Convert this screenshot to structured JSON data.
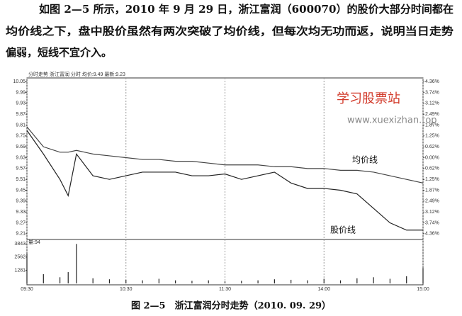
{
  "paragraph": [
    "如图 2—5 所示，2010 年 9 月 29 日，浙江富润（600070）的股价大部分时间都在",
    "均价线之下，盘中股价虽然有两次突破了均价线，但每次均无功而返，说明当日走势",
    "偏弱，短线不宜介入。"
  ],
  "caption": "图 2—5　浙江富润分时走势（2010. 09. 29）",
  "chart_data": {
    "type": "line",
    "title": "分时走势  浙江富润  分时  均价:9.49  最新:9.23",
    "watermark": [
      "学习股票站",
      "www.xuexizhan.top"
    ],
    "annotations": [
      "均价线",
      "股价线"
    ],
    "volume_label": "量:94",
    "x": [
      0,
      10,
      20,
      25,
      30,
      40,
      50,
      60,
      70,
      80,
      90,
      100,
      110,
      120,
      130,
      140,
      150,
      160,
      170,
      180,
      190,
      200,
      210,
      220,
      230,
      240
    ],
    "xlim": [
      0,
      240
    ],
    "xticks": [
      {
        "value": 0,
        "label": "09:30"
      },
      {
        "value": 60,
        "label": "10:30"
      },
      {
        "value": 120,
        "label": "11:30"
      },
      {
        "value": 180,
        "label": "14:00"
      },
      {
        "value": 240,
        "label": "15:00"
      }
    ],
    "series": [
      {
        "name": "股价线",
        "color": "#222",
        "values": [
          9.78,
          9.65,
          9.51,
          9.42,
          9.65,
          9.53,
          9.51,
          9.53,
          9.55,
          9.55,
          9.55,
          9.53,
          9.53,
          9.54,
          9.51,
          9.53,
          9.55,
          9.49,
          9.46,
          9.46,
          9.45,
          9.43,
          9.35,
          9.27,
          9.23,
          9.23
        ]
      },
      {
        "name": "均价线",
        "color": "#444",
        "values": [
          9.8,
          9.69,
          9.66,
          9.66,
          9.67,
          9.65,
          9.64,
          9.63,
          9.62,
          9.62,
          9.61,
          9.61,
          9.6,
          9.59,
          9.59,
          9.59,
          9.58,
          9.58,
          9.57,
          9.57,
          9.56,
          9.56,
          9.55,
          9.53,
          9.51,
          9.49
        ]
      }
    ],
    "ylim": [
      9.19,
      10.07
    ],
    "yticks": [
      10.05,
      9.99,
      9.93,
      9.87,
      9.81,
      9.75,
      9.69,
      9.63,
      9.57,
      9.51,
      9.45,
      9.39,
      9.33,
      9.27,
      9.21
    ],
    "y2lim": [
      -4.57,
      4.57
    ],
    "y2ticks": [
      {
        "value": 4.36,
        "label": "4.36%"
      },
      {
        "value": 3.74,
        "label": "3.74%"
      },
      {
        "value": 3.12,
        "label": "3.12%"
      },
      {
        "value": 2.49,
        "label": "2.49%"
      },
      {
        "value": 1.87,
        "label": "1.87%"
      },
      {
        "value": 1.25,
        "label": "1.25%"
      },
      {
        "value": 0.62,
        "label": "0.62%"
      },
      {
        "value": 0,
        "label": "0.00%"
      },
      {
        "value": -0.62,
        "label": "0.62%"
      },
      {
        "value": -1.25,
        "label": "1.25%"
      },
      {
        "value": -1.87,
        "label": "1.87%"
      },
      {
        "value": -2.49,
        "label": "2.49%"
      },
      {
        "value": -3.12,
        "label": "3.12%"
      },
      {
        "value": -3.74,
        "label": "3.74%"
      },
      {
        "value": -4.36,
        "label": "4.36%"
      }
    ],
    "volume": [
      2900,
      900,
      600,
      1100,
      3843,
      500,
      400,
      350,
      300,
      450,
      300,
      250,
      300,
      200,
      250,
      300,
      400,
      350,
      300,
      450,
      300,
      500,
      600,
      450,
      700,
      1500
    ],
    "vlim": [
      0,
      4000
    ],
    "vticks": [
      1281,
      2562,
      3843
    ],
    "grid": true
  }
}
